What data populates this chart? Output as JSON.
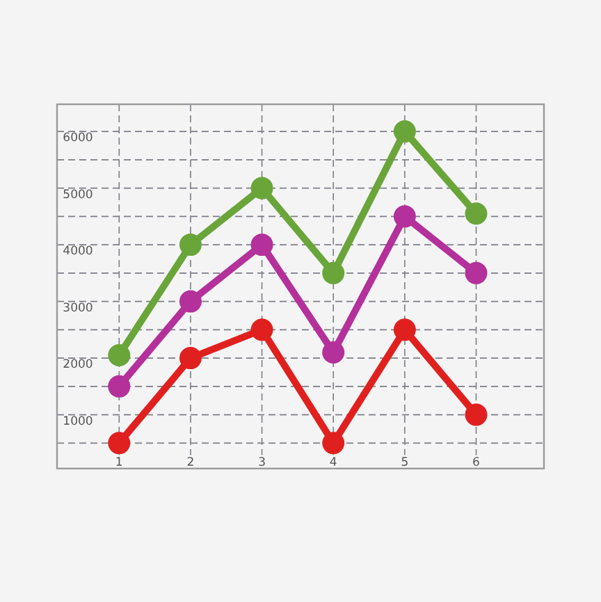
{
  "chart_data": {
    "type": "line",
    "x": [
      1,
      2,
      3,
      4,
      5,
      6
    ],
    "xlim": [
      0.13,
      6.95
    ],
    "xticks": [
      1,
      2,
      3,
      4,
      5,
      6
    ],
    "ylim": [
      50,
      6480
    ],
    "yticks": [
      {
        "value": 500,
        "label": null
      },
      1000,
      {
        "value": 1500,
        "label": null
      },
      2000,
      {
        "value": 2500,
        "label": null
      },
      3000,
      {
        "value": 3500,
        "label": null
      },
      4000,
      {
        "value": 4500,
        "label": null
      },
      5000,
      {
        "value": 5500,
        "label": null
      },
      6000
    ],
    "grid": true,
    "marker": "circle",
    "line_style": "solid",
    "series": [
      {
        "color": "#6aa53a",
        "values": [
          2050,
          4000,
          5000,
          3500,
          6000,
          4550
        ]
      },
      {
        "color": "#b4309a",
        "values": [
          1500,
          3000,
          4000,
          2100,
          4500,
          3500
        ]
      },
      {
        "color": "#e0201f",
        "values": [
          500,
          2000,
          2500,
          500,
          2500,
          1000
        ]
      }
    ]
  }
}
